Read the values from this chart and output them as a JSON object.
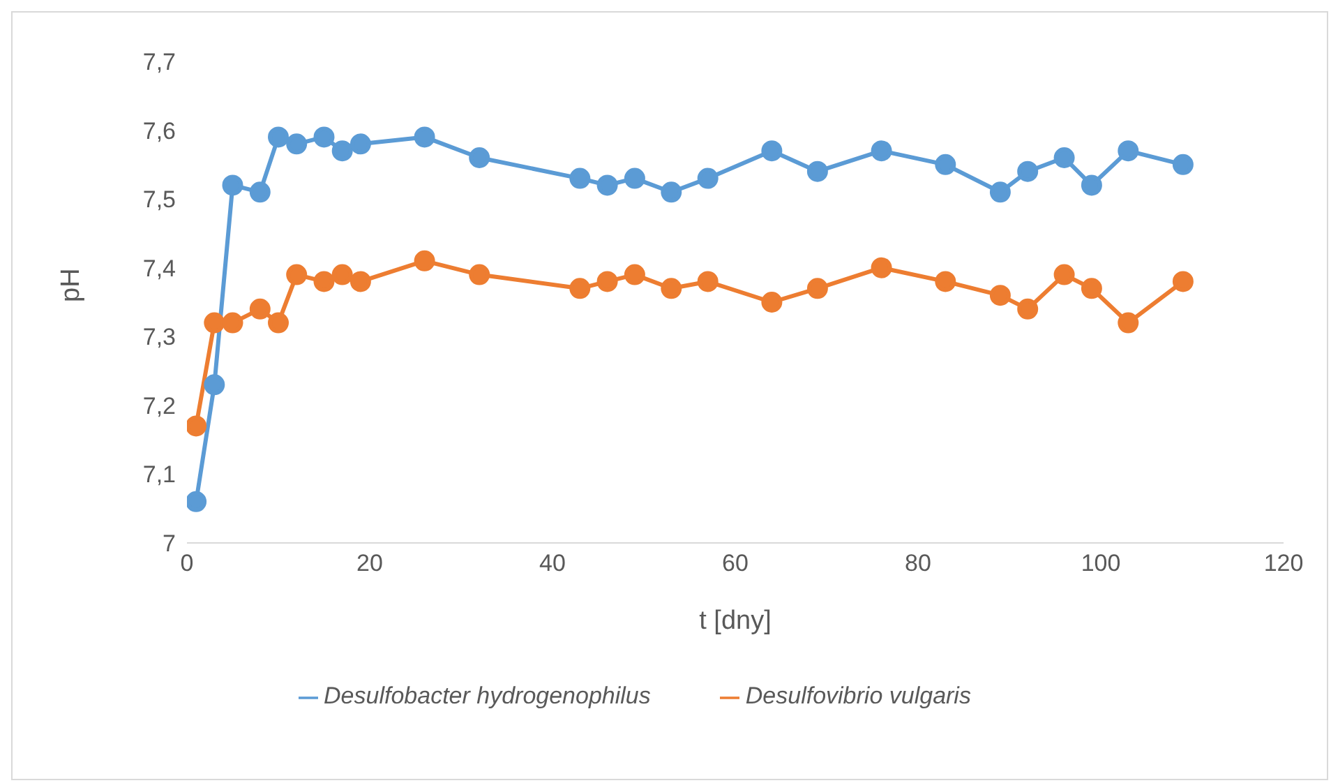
{
  "chart_data": {
    "type": "line",
    "xlabel": "t [dny]",
    "ylabel": "pH",
    "x": [
      1,
      3,
      5,
      8,
      10,
      12,
      15,
      17,
      19,
      26,
      32,
      43,
      46,
      49,
      53,
      57,
      64,
      69,
      76,
      83,
      89,
      92,
      96,
      99,
      103,
      109
    ],
    "series": [
      {
        "name": "Desulfobacter hydrogenophilus",
        "color": "#5b9bd5",
        "values": [
          7.06,
          7.23,
          7.52,
          7.51,
          7.59,
          7.58,
          7.59,
          7.57,
          7.58,
          7.59,
          7.56,
          7.53,
          7.52,
          7.53,
          7.51,
          7.53,
          7.57,
          7.54,
          7.57,
          7.55,
          7.51,
          7.54,
          7.56,
          7.52,
          7.57,
          7.55
        ]
      },
      {
        "name": "Desulfovibrio vulgaris",
        "color": "#ed7d31",
        "values": [
          7.17,
          7.32,
          7.32,
          7.34,
          7.32,
          7.39,
          7.38,
          7.39,
          7.38,
          7.41,
          7.39,
          7.37,
          7.38,
          7.39,
          7.37,
          7.38,
          7.35,
          7.37,
          7.4,
          7.38,
          7.36,
          7.34,
          7.39,
          7.37,
          7.32,
          7.38
        ]
      }
    ],
    "xlim": [
      0,
      120
    ],
    "xticks": [
      0,
      20,
      40,
      60,
      80,
      100,
      120
    ],
    "ylim": [
      7,
      7.7
    ],
    "yticks": [
      7,
      {
        "value": 7.1,
        "label": "7,1"
      },
      {
        "value": 7.2,
        "label": "7,2"
      },
      {
        "value": 7.3,
        "label": "7,3"
      },
      {
        "value": 7.4,
        "label": "7,4"
      },
      {
        "value": 7.5,
        "label": "7,5"
      },
      {
        "value": 7.6,
        "label": "7,6"
      },
      {
        "value": 7.7,
        "label": "7,7"
      }
    ],
    "grid": false,
    "legend": "bottom",
    "marker": "circle",
    "line_style": "solid"
  }
}
